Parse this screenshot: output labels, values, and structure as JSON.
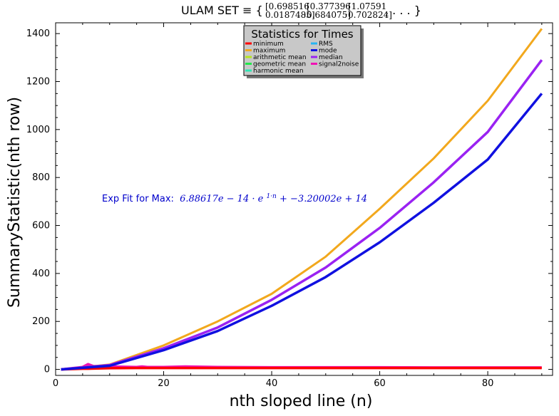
{
  "title": {
    "prefix": "ULAM SET ≡ {",
    "pairs": [
      [
        "0.698516",
        "0.0187485"
      ],
      [
        "0.377396",
        "0.684075"
      ],
      [
        "1.07591",
        "0.702824"
      ]
    ],
    "suffix": ", . . . }"
  },
  "annotation": {
    "label": "Exp Fit for Max:",
    "formula": "6.88617e − 14 · e",
    "exponent": "1·n",
    "formula_tail": " + −3.20002e + 14"
  },
  "chart_data": {
    "type": "line",
    "xlabel": "nth sloped line (n)",
    "ylabel": "SummaryStatistic(nth row)",
    "xlim": [
      0,
      92
    ],
    "ylim": [
      -25,
      1445
    ],
    "xticks": [
      0,
      20,
      40,
      60,
      80
    ],
    "yticks": [
      0,
      200,
      400,
      600,
      800,
      1000,
      1200,
      1400
    ],
    "grid": false,
    "legend": {
      "title": "Statistics for Times",
      "placement": "top-center",
      "entries": [
        {
          "name": "minimum",
          "color": "#ff0000"
        },
        {
          "name": "maximum",
          "color": "#f2a81d"
        },
        {
          "name": "arithmetic mean",
          "color": "#b5e61d"
        },
        {
          "name": "geometric mean",
          "color": "#22e84a"
        },
        {
          "name": "harmonic mean",
          "color": "#2fe6b4"
        },
        {
          "name": "RMS",
          "color": "#27b5f2"
        },
        {
          "name": "mode",
          "color": "#1010e0"
        },
        {
          "name": "median",
          "color": "#9a22f2"
        },
        {
          "name": "signal2noise",
          "color": "#f012b4"
        }
      ]
    },
    "series": [
      {
        "name": "minimum",
        "color": "#ff0000",
        "x": [
          1,
          5,
          6,
          10,
          15,
          20,
          30,
          40,
          50,
          60,
          70,
          80,
          90
        ],
        "y": [
          0,
          3,
          3,
          5,
          6,
          6,
          6,
          6,
          6,
          6,
          6,
          6,
          6
        ]
      },
      {
        "name": "maximum",
        "color": "#f2a81d",
        "x": [
          1,
          10,
          20,
          30,
          40,
          50,
          60,
          70,
          80,
          90
        ],
        "y": [
          0,
          20,
          100,
          200,
          315,
          470,
          670,
          880,
          1120,
          1420
        ]
      },
      {
        "name": "mode",
        "color": "#1010e0",
        "x": [
          1,
          10,
          20,
          30,
          40,
          50,
          60,
          70,
          80,
          90
        ],
        "y": [
          0,
          15,
          80,
          160,
          265,
          385,
          530,
          695,
          875,
          1150
        ]
      },
      {
        "name": "median",
        "color": "#9a22f2",
        "x": [
          1,
          10,
          20,
          30,
          40,
          50,
          60,
          70,
          80,
          90
        ],
        "y": [
          0,
          18,
          88,
          175,
          290,
          425,
          590,
          780,
          990,
          1290
        ]
      },
      {
        "name": "signal2noise",
        "color": "#f012b4",
        "x": [
          1,
          5,
          6,
          7,
          10,
          15,
          16,
          17,
          20,
          24,
          30,
          40,
          50,
          60,
          70,
          80,
          90
        ],
        "y": [
          0,
          10,
          22,
          14,
          12,
          10,
          12,
          10,
          10,
          12,
          10,
          9,
          9,
          9,
          8,
          8,
          8
        ]
      }
    ]
  }
}
